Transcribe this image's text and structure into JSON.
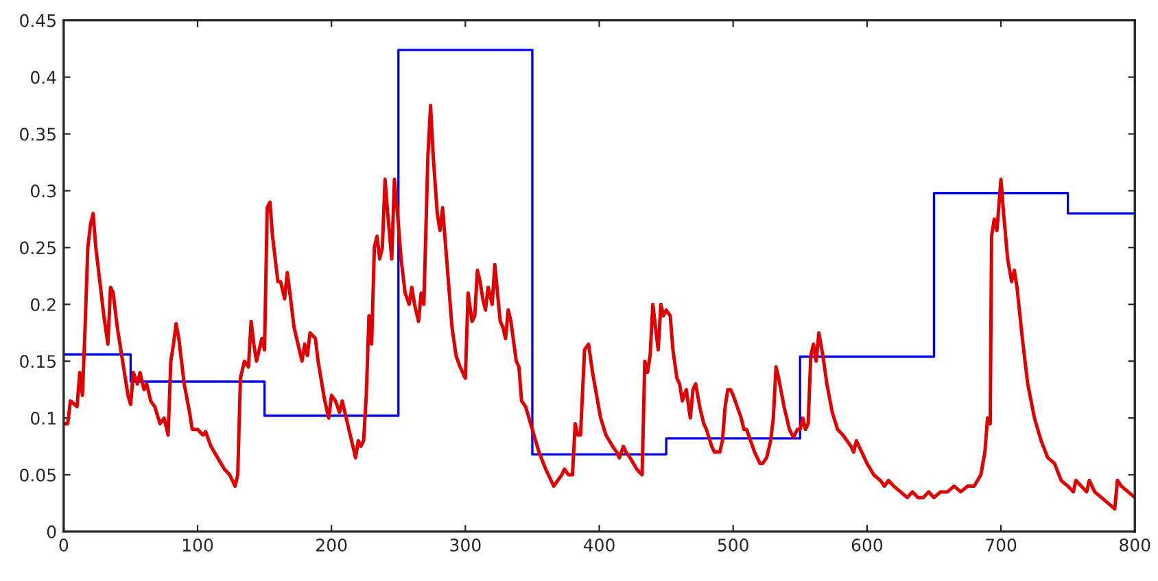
{
  "chart_data": {
    "type": "line",
    "xlim": [
      0,
      800
    ],
    "xticks": [
      0,
      100,
      200,
      300,
      400,
      500,
      600,
      700,
      800
    ],
    "ylim": [
      0,
      0.45
    ],
    "yticks": [
      0,
      0.05,
      0.1,
      0.15,
      0.2,
      0.25,
      0.3,
      0.35,
      0.4,
      0.45
    ],
    "grid": false,
    "legend": false,
    "marker": "none",
    "line_style": "solid",
    "series": [
      {
        "type": "step",
        "color": "#0000ee",
        "x": [
          0,
          50,
          150,
          250,
          350,
          450,
          550,
          650,
          750,
          800
        ],
        "values": [
          0.156,
          0.132,
          0.102,
          0.424,
          0.068,
          0.082,
          0.154,
          0.298,
          0.28,
          0.28
        ]
      },
      {
        "color": "#e00000",
        "x": [
          0,
          3,
          5,
          10,
          12,
          14,
          16,
          18,
          20,
          22,
          24,
          27,
          30,
          33,
          35,
          37,
          40,
          44,
          48,
          50,
          52,
          55,
          57,
          60,
          62,
          65,
          68,
          72,
          75,
          78,
          80,
          82,
          84,
          86,
          90,
          94,
          96,
          100,
          104,
          106,
          110,
          115,
          120,
          124,
          128,
          130,
          132,
          135,
          138,
          140,
          142,
          144,
          148,
          150,
          152,
          154,
          156,
          160,
          162,
          165,
          167,
          170,
          172,
          176,
          178,
          180,
          182,
          184,
          188,
          190,
          195,
          198,
          200,
          203,
          206,
          208,
          212,
          216,
          218,
          220,
          222,
          224,
          226,
          228,
          230,
          232,
          234,
          236,
          238,
          240,
          242,
          245,
          247,
          250,
          252,
          255,
          258,
          260,
          262,
          265,
          267,
          269,
          272,
          274,
          276,
          279,
          281,
          283,
          286,
          290,
          293,
          296,
          298,
          300,
          302,
          305,
          307,
          309,
          311,
          313,
          315,
          317,
          320,
          322,
          324,
          326,
          328,
          330,
          332,
          334,
          338,
          340,
          342,
          345,
          350,
          355,
          360,
          364,
          366,
          369,
          372,
          374,
          377,
          380,
          382,
          384,
          386,
          389,
          392,
          395,
          398,
          401,
          405,
          410,
          413,
          415,
          418,
          420,
          423,
          428,
          432,
          434,
          436,
          438,
          440,
          442,
          444,
          446,
          448,
          450,
          453,
          455,
          458,
          460,
          462,
          465,
          468,
          470,
          472,
          475,
          478,
          480,
          484,
          486,
          490,
          492,
          494,
          496,
          498,
          500,
          503,
          506,
          508,
          510,
          513,
          516,
          520,
          522,
          525,
          528,
          530,
          532,
          534,
          538,
          542,
          545,
          548,
          550,
          552,
          554,
          556,
          558,
          560,
          562,
          564,
          567,
          570,
          574,
          578,
          582,
          585,
          588,
          590,
          592,
          596,
          600,
          605,
          610,
          613,
          616,
          620,
          625,
          630,
          634,
          638,
          642,
          646,
          650,
          655,
          660,
          665,
          670,
          675,
          680,
          685,
          688,
          690,
          692,
          693,
          695,
          697,
          700,
          702,
          705,
          708,
          710,
          712,
          716,
          720,
          725,
          730,
          735,
          740,
          745,
          750,
          754,
          756,
          760,
          764,
          766,
          770,
          775,
          780,
          785,
          787,
          790,
          795,
          800
        ],
        "values": [
          0.095,
          0.095,
          0.115,
          0.11,
          0.14,
          0.12,
          0.18,
          0.25,
          0.27,
          0.28,
          0.25,
          0.22,
          0.19,
          0.165,
          0.215,
          0.21,
          0.18,
          0.15,
          0.12,
          0.112,
          0.14,
          0.13,
          0.14,
          0.125,
          0.13,
          0.115,
          0.11,
          0.095,
          0.1,
          0.085,
          0.15,
          0.165,
          0.183,
          0.17,
          0.13,
          0.105,
          0.09,
          0.09,
          0.085,
          0.088,
          0.075,
          0.065,
          0.055,
          0.05,
          0.04,
          0.05,
          0.135,
          0.15,
          0.145,
          0.185,
          0.165,
          0.15,
          0.17,
          0.16,
          0.285,
          0.29,
          0.26,
          0.22,
          0.22,
          0.205,
          0.228,
          0.2,
          0.18,
          0.16,
          0.15,
          0.165,
          0.155,
          0.175,
          0.17,
          0.15,
          0.115,
          0.1,
          0.12,
          0.115,
          0.105,
          0.115,
          0.095,
          0.075,
          0.065,
          0.08,
          0.075,
          0.08,
          0.12,
          0.19,
          0.165,
          0.25,
          0.26,
          0.24,
          0.25,
          0.31,
          0.28,
          0.24,
          0.31,
          0.27,
          0.24,
          0.21,
          0.2,
          0.215,
          0.2,
          0.185,
          0.21,
          0.2,
          0.33,
          0.375,
          0.33,
          0.28,
          0.265,
          0.285,
          0.24,
          0.18,
          0.155,
          0.145,
          0.14,
          0.135,
          0.21,
          0.185,
          0.19,
          0.23,
          0.22,
          0.205,
          0.195,
          0.215,
          0.2,
          0.235,
          0.21,
          0.185,
          0.18,
          0.17,
          0.195,
          0.185,
          0.15,
          0.145,
          0.115,
          0.11,
          0.09,
          0.07,
          0.055,
          0.045,
          0.04,
          0.045,
          0.05,
          0.055,
          0.05,
          0.05,
          0.095,
          0.085,
          0.085,
          0.16,
          0.165,
          0.14,
          0.12,
          0.1,
          0.085,
          0.075,
          0.07,
          0.065,
          0.075,
          0.07,
          0.065,
          0.055,
          0.05,
          0.15,
          0.14,
          0.155,
          0.2,
          0.18,
          0.16,
          0.2,
          0.19,
          0.195,
          0.19,
          0.16,
          0.135,
          0.13,
          0.115,
          0.125,
          0.1,
          0.125,
          0.13,
          0.11,
          0.095,
          0.09,
          0.075,
          0.07,
          0.07,
          0.08,
          0.11,
          0.125,
          0.125,
          0.12,
          0.11,
          0.1,
          0.09,
          0.09,
          0.08,
          0.07,
          0.06,
          0.06,
          0.065,
          0.08,
          0.1,
          0.145,
          0.135,
          0.11,
          0.09,
          0.083,
          0.09,
          0.09,
          0.1,
          0.09,
          0.095,
          0.155,
          0.165,
          0.15,
          0.175,
          0.155,
          0.13,
          0.105,
          0.09,
          0.085,
          0.08,
          0.075,
          0.07,
          0.08,
          0.07,
          0.06,
          0.05,
          0.045,
          0.04,
          0.045,
          0.04,
          0.035,
          0.03,
          0.035,
          0.03,
          0.03,
          0.035,
          0.03,
          0.035,
          0.035,
          0.04,
          0.035,
          0.04,
          0.04,
          0.05,
          0.07,
          0.1,
          0.095,
          0.26,
          0.275,
          0.265,
          0.31,
          0.28,
          0.24,
          0.22,
          0.23,
          0.215,
          0.17,
          0.13,
          0.1,
          0.08,
          0.065,
          0.06,
          0.045,
          0.04,
          0.035,
          0.045,
          0.04,
          0.035,
          0.045,
          0.035,
          0.03,
          0.025,
          0.02,
          0.045,
          0.04,
          0.035,
          0.03
        ]
      }
    ]
  }
}
